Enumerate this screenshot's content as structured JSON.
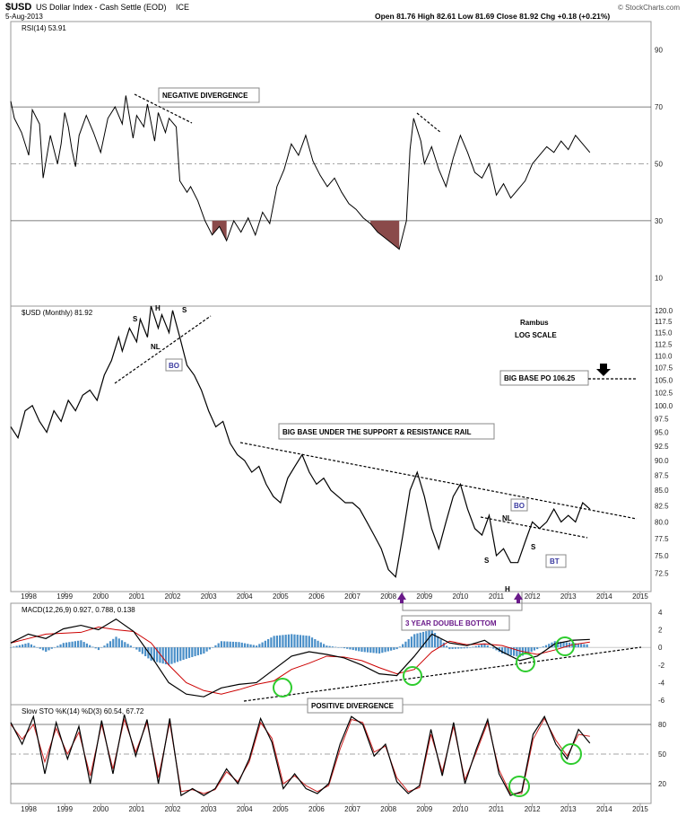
{
  "header": {
    "symbol": "$USD",
    "name": "US Dollar Index - Cash Settle (EOD)",
    "exchange": "ICE",
    "date": "5-Aug-2013",
    "quote": "Open 81.76  High 82.61  Low 81.69  Close 81.92  Chg +0.18 (+0.21%)",
    "watermark": "© StockCharts.com"
  },
  "chart_data": [
    {
      "type": "line",
      "title": "RSI(14) 53.91",
      "ylim": [
        0,
        100
      ],
      "y_ticks": [
        "90",
        "70",
        "50",
        "30",
        "10"
      ],
      "levels": [
        70,
        50,
        30
      ],
      "x": [
        1997.5,
        1997.6,
        1997.8,
        1998.0,
        1998.1,
        1998.3,
        1998.4,
        1998.6,
        1998.8,
        1998.9,
        1999.0,
        1999.1,
        1999.2,
        1999.3,
        1999.4,
        1999.6,
        1999.8,
        2000.0,
        2000.2,
        2000.4,
        2000.6,
        2000.7,
        2000.9,
        2001.0,
        2001.2,
        2001.3,
        2001.5,
        2001.6,
        2001.8,
        2001.9,
        2002.1,
        2002.2,
        2002.4,
        2002.5,
        2002.7,
        2002.9,
        2003.1,
        2003.3,
        2003.5,
        2003.7,
        2003.9,
        2004.1,
        2004.3,
        2004.5,
        2004.7,
        2004.9,
        2005.1,
        2005.3,
        2005.5,
        2005.7,
        2005.9,
        2006.1,
        2006.3,
        2006.5,
        2006.7,
        2006.9,
        2007.1,
        2007.3,
        2007.5,
        2007.7,
        2007.9,
        2008.1,
        2008.3,
        2008.5,
        2008.6,
        2008.7,
        2008.8,
        2008.9,
        2009.0,
        2009.2,
        2009.4,
        2009.6,
        2009.8,
        2010.0,
        2010.2,
        2010.4,
        2010.6,
        2010.8,
        2011.0,
        2011.2,
        2011.4,
        2011.6,
        2011.8,
        2012.0,
        2012.2,
        2012.4,
        2012.6,
        2012.8,
        2013.0,
        2013.2,
        2013.4,
        2013.6
      ],
      "values": [
        72,
        66,
        61,
        53,
        69,
        64,
        45,
        60,
        50,
        57,
        68,
        63,
        55,
        49,
        60,
        67,
        61,
        54,
        66,
        70,
        64,
        74,
        59,
        67,
        63,
        71,
        58,
        68,
        61,
        66,
        63,
        44,
        40,
        42,
        37,
        30,
        25,
        28,
        23,
        30,
        26,
        31,
        25,
        33,
        29,
        42,
        48,
        57,
        53,
        60,
        51,
        46,
        42,
        45,
        40,
        36,
        34,
        31,
        29,
        26,
        24,
        22,
        20,
        30,
        55,
        66,
        62,
        58,
        50,
        56,
        48,
        42,
        52,
        60,
        54,
        47,
        45,
        50,
        39,
        43,
        38,
        41,
        44,
        50,
        53,
        56,
        54,
        58,
        55,
        60,
        57,
        54
      ],
      "annotations": [
        "NEGATIVE DIVERGENCE"
      ]
    },
    {
      "type": "line",
      "title": "$USD (Monthly) 81.92",
      "scale": "log",
      "ylim": [
        70,
        121
      ],
      "y_ticks": [
        "120.0",
        "117.5",
        "115.0",
        "112.5",
        "110.0",
        "107.5",
        "105.0",
        "102.5",
        "100.0",
        "97.5",
        "95.0",
        "92.5",
        "90.0",
        "87.5",
        "85.0",
        "82.5",
        "80.0",
        "77.5",
        "75.0",
        "72.5"
      ],
      "x_ticks": [
        "1998",
        "1999",
        "2000",
        "2001",
        "2002",
        "2003",
        "2004",
        "2005",
        "2006",
        "2007",
        "2008",
        "2009",
        "2010",
        "2011",
        "2012",
        "2013",
        "2014",
        "2015"
      ],
      "x": [
        1997.5,
        1997.7,
        1997.9,
        1998.1,
        1998.3,
        1998.5,
        1998.7,
        1998.9,
        1999.1,
        1999.3,
        1999.5,
        1999.7,
        1999.9,
        2000.1,
        2000.3,
        2000.5,
        2000.6,
        2000.8,
        2001.0,
        2001.1,
        2001.3,
        2001.4,
        2001.6,
        2001.7,
        2001.9,
        2002.0,
        2002.2,
        2002.4,
        2002.6,
        2002.8,
        2003.0,
        2003.2,
        2003.4,
        2003.6,
        2003.8,
        2004.0,
        2004.2,
        2004.4,
        2004.6,
        2004.8,
        2005.0,
        2005.2,
        2005.4,
        2005.6,
        2005.8,
        2006.0,
        2006.2,
        2006.4,
        2006.6,
        2006.8,
        2007.0,
        2007.2,
        2007.4,
        2007.6,
        2007.8,
        2008.0,
        2008.2,
        2008.4,
        2008.6,
        2008.8,
        2009.0,
        2009.2,
        2009.4,
        2009.6,
        2009.8,
        2010.0,
        2010.2,
        2010.4,
        2010.6,
        2010.8,
        2011.0,
        2011.2,
        2011.4,
        2011.6,
        2011.8,
        2012.0,
        2012.2,
        2012.4,
        2012.6,
        2012.8,
        2013.0,
        2013.2,
        2013.4,
        2013.6
      ],
      "values": [
        96,
        94,
        99,
        100,
        97,
        95,
        99,
        97,
        101,
        99,
        102,
        103,
        101,
        106,
        109,
        114,
        111,
        116,
        113,
        118,
        114,
        121,
        116,
        119,
        115,
        120,
        114,
        108,
        106,
        103,
        99,
        96,
        97,
        93,
        91,
        90,
        88,
        89,
        86,
        84,
        83,
        87,
        89,
        91,
        88,
        86,
        87,
        85,
        84,
        83,
        83,
        82,
        80,
        78,
        76,
        73,
        72,
        78,
        85,
        88,
        84,
        79,
        76,
        80,
        84,
        86,
        82,
        79,
        78,
        81,
        75,
        76,
        74,
        74,
        77,
        80,
        79,
        80,
        82,
        80,
        81,
        80,
        83,
        82
      ],
      "annotations": [
        "S",
        "H",
        "S",
        "NL",
        "BO",
        "Rambus",
        "LOG SCALE",
        "BIG BASE PO 106.25",
        "BIG BASE UNDER THE SUPPORT & RESISTANCE RAIL",
        "BO",
        "NL",
        "S",
        "S",
        "H",
        "BT",
        "3 YEAR DOUBLE BOTTOM"
      ]
    },
    {
      "type": "line",
      "title": "MACD(12,26,9) 0.927, 0.788, 0.138",
      "ylim": [
        -6.5,
        5
      ],
      "y_ticks": [
        "4",
        "2",
        "0",
        "-2",
        "-4",
        "-6"
      ],
      "series": [
        {
          "name": "MACD",
          "color": "#000000",
          "values": [
            0.5,
            1.5,
            1.0,
            2.1,
            2.5,
            2.0,
            3.2,
            1.8,
            -1,
            -4,
            -5.3,
            -5.6,
            -4.6,
            -4.2,
            -4,
            -2.5,
            -1,
            -0.5,
            -0.8,
            -1.2,
            -2,
            -3,
            -3.2,
            -1,
            1.5,
            0.5,
            0.2,
            0.8,
            -0.5,
            -1.5,
            -1,
            0.4,
            0.8,
            0.9
          ]
        },
        {
          "name": "Signal",
          "color": "#cc0000",
          "values": [
            0.5,
            1.0,
            1.5,
            1.6,
            1.7,
            2.3,
            2.0,
            1.8,
            0.5,
            -2,
            -4,
            -4.9,
            -5.3,
            -4.8,
            -4.2,
            -3.8,
            -2.5,
            -1.8,
            -1,
            -1.1,
            -1.5,
            -2.3,
            -3,
            -2.5,
            -0.5,
            0.7,
            0.3,
            0.4,
            0.2,
            -0.4,
            -0.8,
            -0.3,
            0.3,
            0.6
          ]
        },
        {
          "name": "Histogram",
          "color": "#4a8fc8",
          "values": [
            0,
            0.5,
            -0.5,
            0.5,
            0.8,
            -0.3,
            1.2,
            0,
            -1.5,
            -2,
            -1.3,
            -0.7,
            0.7,
            0.6,
            0.2,
            1.3,
            1.5,
            1.3,
            0.2,
            -0.1,
            -0.5,
            -0.7,
            -0.2,
            1.5,
            2.0,
            -0.2,
            -0.1,
            0.4,
            -0.7,
            -1.1,
            -0.2,
            0.7,
            0.5,
            0.3
          ]
        }
      ],
      "annotations": [
        "POSITIVE DIVERGENCE"
      ]
    },
    {
      "type": "line",
      "title": "Slow STO %K(14) %D(3) 60.54, 67.72",
      "ylim": [
        0,
        100
      ],
      "y_ticks": [
        "80",
        "50",
        "20"
      ],
      "levels": [
        80,
        50,
        20
      ],
      "series": [
        {
          "name": "%K",
          "color": "#000000",
          "values": [
            82,
            60,
            88,
            30,
            82,
            45,
            78,
            20,
            84,
            30,
            90,
            48,
            85,
            20,
            86,
            8,
            15,
            8,
            15,
            35,
            20,
            45,
            86,
            62,
            15,
            30,
            15,
            10,
            20,
            60,
            88,
            80,
            48,
            60,
            22,
            10,
            18,
            75,
            28,
            82,
            20,
            55,
            85,
            30,
            8,
            12,
            70,
            88,
            60,
            45,
            75,
            61
          ]
        },
        {
          "name": "%D",
          "color": "#cc2222",
          "values": [
            80,
            65,
            80,
            42,
            76,
            50,
            72,
            28,
            80,
            35,
            85,
            52,
            82,
            26,
            82,
            12,
            14,
            10,
            14,
            32,
            22,
            42,
            82,
            66,
            20,
            28,
            18,
            12,
            18,
            55,
            85,
            82,
            52,
            58,
            26,
            12,
            16,
            70,
            32,
            78,
            24,
            52,
            82,
            34,
            10,
            10,
            65,
            86,
            64,
            48,
            70,
            68
          ]
        }
      ]
    }
  ]
}
